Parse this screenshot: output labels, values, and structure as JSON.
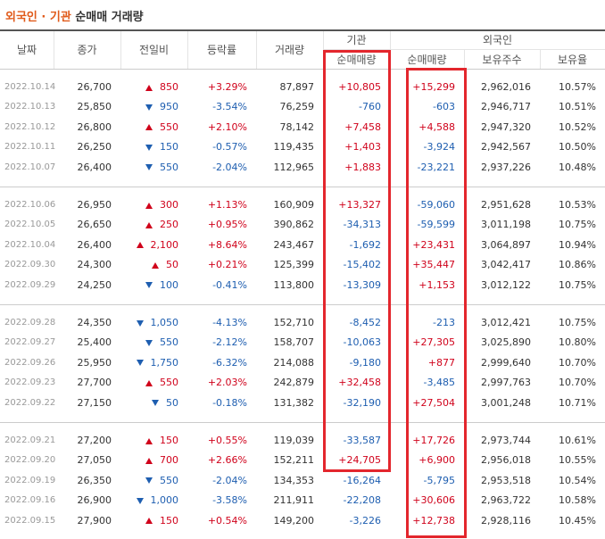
{
  "header": {
    "title_highlight": "외국인 · 기관",
    "title_rest": "순매매 거래량"
  },
  "table": {
    "columns": [
      "날짜",
      "종가",
      "전일비",
      "등락률",
      "거래량"
    ],
    "groups": [
      {
        "name": "기관",
        "sub": [
          "순매매량"
        ]
      },
      {
        "name": "외국인",
        "sub": [
          "순매매량",
          "보유주수",
          "보유율"
        ]
      }
    ],
    "rows": [
      [
        "2022.10.14",
        "26,700",
        "850",
        "+3.29%",
        "87,897",
        "+10,805",
        "+15,299",
        "2,962,016",
        "10.57%"
      ],
      [
        "2022.10.13",
        "25,850",
        "950",
        "-3.54%",
        "76,259",
        "-760",
        "-603",
        "2,946,717",
        "10.51%"
      ],
      [
        "2022.10.12",
        "26,800",
        "550",
        "+2.10%",
        "78,142",
        "+7,458",
        "+4,588",
        "2,947,320",
        "10.52%"
      ],
      [
        "2022.10.11",
        "26,250",
        "150",
        "-0.57%",
        "119,435",
        "+1,403",
        "-3,924",
        "2,942,567",
        "10.50%"
      ],
      [
        "2022.10.07",
        "26,400",
        "550",
        "-2.04%",
        "112,965",
        "+1,883",
        "-23,221",
        "2,937,226",
        "10.48%"
      ],
      [
        "2022.10.06",
        "26,950",
        "300",
        "+1.13%",
        "160,909",
        "+13,327",
        "-59,060",
        "2,951,628",
        "10.53%"
      ],
      [
        "2022.10.05",
        "26,650",
        "250",
        "+0.95%",
        "390,862",
        "-34,313",
        "-59,599",
        "3,011,198",
        "10.75%"
      ],
      [
        "2022.10.04",
        "26,400",
        "2,100",
        "+8.64%",
        "243,467",
        "-1,692",
        "+23,431",
        "3,064,897",
        "10.94%"
      ],
      [
        "2022.09.30",
        "24,300",
        "50",
        "+0.21%",
        "125,399",
        "-15,402",
        "+35,447",
        "3,042,417",
        "10.86%"
      ],
      [
        "2022.09.29",
        "24,250",
        "100",
        "-0.41%",
        "113,800",
        "-13,309",
        "+1,153",
        "3,012,122",
        "10.75%"
      ],
      [
        "2022.09.28",
        "24,350",
        "1,050",
        "-4.13%",
        "152,710",
        "-8,452",
        "-213",
        "3,012,421",
        "10.75%"
      ],
      [
        "2022.09.27",
        "25,400",
        "550",
        "-2.12%",
        "158,707",
        "-10,063",
        "+27,305",
        "3,025,890",
        "10.80%"
      ],
      [
        "2022.09.26",
        "25,950",
        "1,750",
        "-6.32%",
        "214,088",
        "-9,180",
        "+877",
        "2,999,640",
        "10.70%"
      ],
      [
        "2022.09.23",
        "27,700",
        "550",
        "+2.03%",
        "242,879",
        "+32,458",
        "-3,485",
        "2,997,763",
        "10.70%"
      ],
      [
        "2022.09.22",
        "27,150",
        "50",
        "-0.18%",
        "131,382",
        "-32,190",
        "+27,504",
        "3,001,248",
        "10.71%"
      ],
      [
        "2022.09.21",
        "27,200",
        "150",
        "+0.55%",
        "119,039",
        "-33,587",
        "+17,726",
        "2,973,744",
        "10.61%"
      ],
      [
        "2022.09.20",
        "27,050",
        "700",
        "+2.66%",
        "152,211",
        "+24,705",
        "+6,900",
        "2,956,018",
        "10.55%"
      ],
      [
        "2022.09.19",
        "26,350",
        "550",
        "-2.04%",
        "134,353",
        "-16,264",
        "-5,795",
        "2,953,518",
        "10.54%"
      ],
      [
        "2022.09.16",
        "26,900",
        "1,000",
        "-3.58%",
        "211,911",
        "-22,208",
        "+30,606",
        "2,963,722",
        "10.58%"
      ],
      [
        "2022.09.15",
        "27,900",
        "150",
        "+0.54%",
        "149,200",
        "-3,226",
        "+12,738",
        "2,928,116",
        "10.45%"
      ]
    ]
  }
}
